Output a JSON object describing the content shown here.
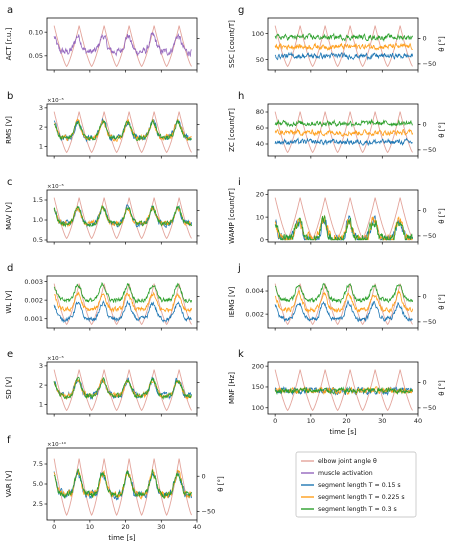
{
  "figure": {
    "series_legend": [
      {
        "label": "elbow joint angle θ",
        "color": "#e3a49b"
      },
      {
        "label": "muscle activation",
        "color": "#9467bd"
      },
      {
        "label": "segment length T = 0.15 s",
        "color": "#1f77b4"
      },
      {
        "label": "segment length T = 0.225 s",
        "color": "#ff9f1c"
      },
      {
        "label": "segment length T = 0.3 s",
        "color": "#2ca02c"
      }
    ],
    "time_label": "time [s]",
    "theta_label": "θ [°]",
    "theta_ticks": [
      "0",
      "−50"
    ]
  },
  "chart_data": [
    {
      "letter": "a",
      "type": "line",
      "ylabel": "ACT [r.u.]",
      "yticks": [
        "0.05",
        "0.10"
      ],
      "ylim": [
        0.02,
        0.13
      ],
      "exponent": "",
      "series": [
        "angle",
        "activation"
      ],
      "xlim": [
        -2,
        40
      ],
      "grid": false
    },
    {
      "letter": "b",
      "type": "line",
      "ylabel": "RMS [V]",
      "yticks": [
        "1",
        "2",
        "3"
      ],
      "ylim": [
        0.5,
        3.2
      ],
      "exponent": "×10⁻⁵",
      "series": [
        "angle",
        "T=0.15s",
        "T=0.225s",
        "T=0.3s"
      ],
      "xlim": [
        -2,
        40
      ],
      "grid": false
    },
    {
      "letter": "c",
      "type": "line",
      "ylabel": "MAV [V]",
      "yticks": [
        "0.5",
        "1.0",
        "1.5"
      ],
      "ylim": [
        0.45,
        1.75
      ],
      "exponent": "×10⁻⁵",
      "series": [
        "angle",
        "T=0.15s",
        "T=0.225s",
        "T=0.3s"
      ],
      "xlim": [
        -2,
        40
      ],
      "grid": false
    },
    {
      "letter": "d",
      "type": "line",
      "ylabel": "WL [V]",
      "yticks": [
        "0.001",
        "0.002",
        "0.003"
      ],
      "ylim": [
        0.0005,
        0.0033
      ],
      "exponent": "",
      "series": [
        "angle",
        "T=0.15s",
        "T=0.225s",
        "T=0.3s"
      ],
      "xlim": [
        -2,
        40
      ],
      "grid": false
    },
    {
      "letter": "e",
      "type": "line",
      "ylabel": "SD [V]",
      "yticks": [
        "1",
        "2",
        "3"
      ],
      "ylim": [
        0.5,
        3.2
      ],
      "exponent": "×10⁻⁵",
      "series": [
        "angle",
        "T=0.15s",
        "T=0.225s",
        "T=0.3s"
      ],
      "xlim": [
        -2,
        40
      ],
      "grid": false
    },
    {
      "letter": "f",
      "type": "line",
      "ylabel": "VAR [V]",
      "yticks": [
        "2.5",
        "5.0",
        "7.5"
      ],
      "ylim": [
        0.5,
        9.5
      ],
      "exponent": "×10⁻¹⁰",
      "series": [
        "angle",
        "T=0.15s",
        "T=0.225s",
        "T=0.3s"
      ],
      "xlim": [
        -2,
        40
      ],
      "xticks": [
        "0",
        "10",
        "20",
        "30",
        "40"
      ],
      "grid": false
    },
    {
      "letter": "g",
      "type": "line",
      "ylabel": "SSC [count/T]",
      "yticks": [
        "50",
        "100"
      ],
      "ylim": [
        30,
        130
      ],
      "exponent": "",
      "series": [
        "angle",
        "T=0.15s",
        "T=0.225s",
        "T=0.3s"
      ],
      "xlim": [
        -2,
        40
      ],
      "grid": false
    },
    {
      "letter": "h",
      "type": "line",
      "ylabel": "ZC [count/T]",
      "yticks": [
        "40",
        "60",
        "80"
      ],
      "ylim": [
        25,
        90
      ],
      "exponent": "",
      "series": [
        "angle",
        "T=0.15s",
        "T=0.225s",
        "T=0.3s"
      ],
      "xlim": [
        -2,
        40
      ],
      "grid": false
    },
    {
      "letter": "i",
      "type": "line",
      "ylabel": "WAMP [count/T]",
      "yticks": [
        "0",
        "10",
        "20"
      ],
      "ylim": [
        -1,
        22
      ],
      "exponent": "",
      "series": [
        "angle",
        "T=0.15s",
        "T=0.225s",
        "T=0.3s"
      ],
      "xlim": [
        -2,
        40
      ],
      "grid": false
    },
    {
      "letter": "j",
      "type": "line",
      "ylabel": "IEMG [V]",
      "yticks": [
        "0.002",
        "0.004"
      ],
      "ylim": [
        0.0008,
        0.0053
      ],
      "exponent": "",
      "series": [
        "angle",
        "T=0.15s",
        "T=0.225s",
        "T=0.3s"
      ],
      "xlim": [
        -2,
        40
      ],
      "grid": false
    },
    {
      "letter": "k",
      "type": "line",
      "ylabel": "MNF [Hz]",
      "yticks": [
        "100",
        "150",
        "200"
      ],
      "ylim": [
        85,
        210
      ],
      "exponent": "",
      "series": [
        "angle",
        "T=0.15s",
        "T=0.225s",
        "T=0.3s"
      ],
      "xlim": [
        -2,
        40
      ],
      "xticks": [
        "0",
        "10",
        "20",
        "30",
        "40"
      ],
      "grid": false
    }
  ]
}
